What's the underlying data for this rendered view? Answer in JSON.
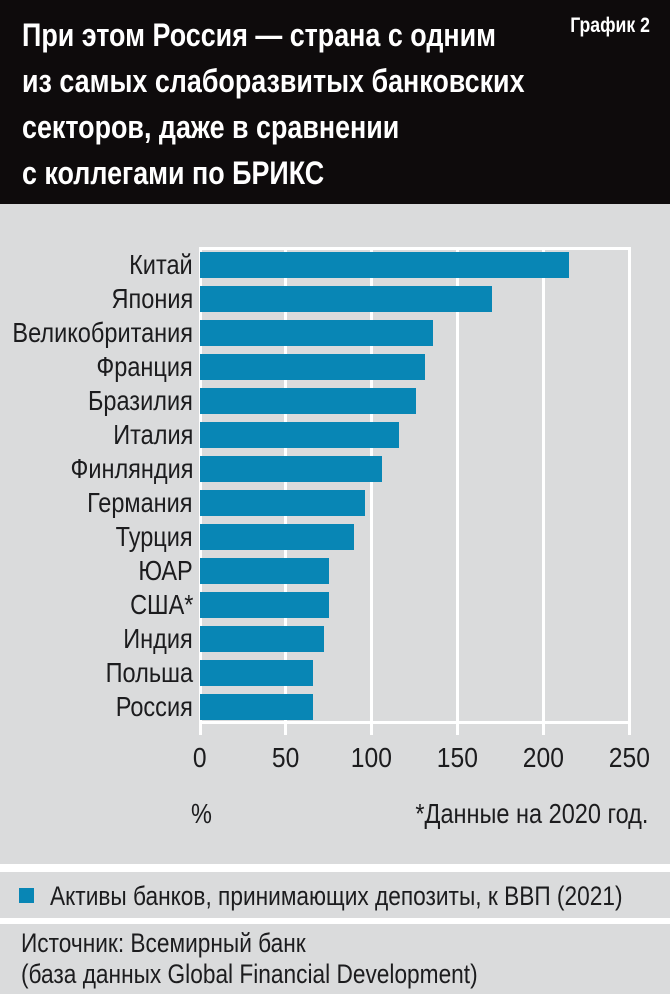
{
  "header": {
    "title_lines": [
      "При этом Россия — страна с одним",
      "из самых слаборазвитых банковских",
      "секторов, даже в сравнении",
      "с коллегами по БРИКС"
    ],
    "chart_tag": "График 2"
  },
  "chart_data": {
    "type": "bar",
    "orientation": "horizontal",
    "title": "Активы банков, принимающих депозиты, к ВВП (2021)",
    "categories": [
      "Китай",
      "Япония",
      "Великобритания",
      "Франция",
      "Бразилия",
      "Италия",
      "Финляндия",
      "Германия",
      "Турция",
      "ЮАР",
      "США*",
      "Индия",
      "Польша",
      "Россия"
    ],
    "values": [
      215,
      170,
      136,
      131,
      126,
      116,
      106,
      96,
      90,
      75,
      75,
      72,
      66,
      66
    ],
    "xlabel": "%",
    "ylabel": "",
    "xlim": [
      0,
      250
    ],
    "xticks": [
      0,
      50,
      100,
      150,
      200,
      250
    ],
    "grid": "vertical white gridlines on",
    "legend_position": "bottom",
    "footnote": "*Данные на 2020 год.",
    "bar_color": "#0886b5"
  },
  "legend": {
    "marker_color": "#0886b5",
    "label": "Активы банков, принимающих депозиты, к ВВП (2021)"
  },
  "source": {
    "line1": "Источник: Всемирный банк",
    "line2": "(база данных Global Financial Development)"
  },
  "colors": {
    "accent": "#0886b5",
    "header_bg": "#0e0b0c",
    "panel_bg": "#dadbdc",
    "grid": "#ffffff",
    "text_dark": "#1c1c1e",
    "text_light": "#ffffff"
  }
}
